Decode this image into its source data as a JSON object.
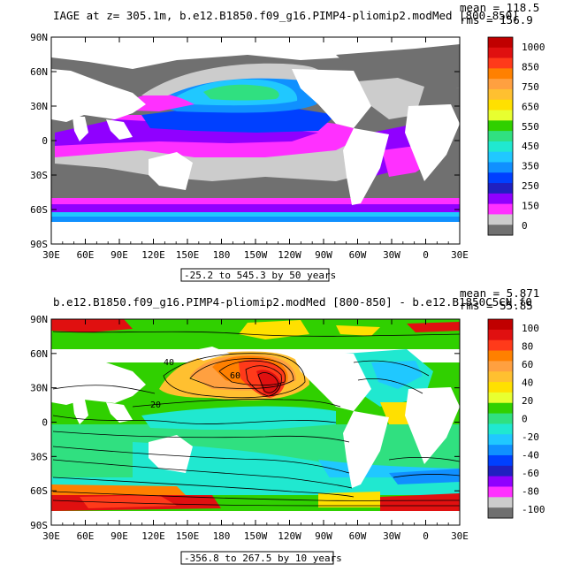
{
  "panels": [
    {
      "title": "IAGE at z= 305.1m, b.e12.B1850.f09_g16.PIMP4-pliomip2.modMed [800-850]",
      "mean_text": "mean = 118.5",
      "rms_text": "rms = 156.9",
      "range_text": "-25.2 to 545.3 by 50 years",
      "colorbar": {
        "labels": [
          "1000",
          "850",
          "750",
          "650",
          "550",
          "450",
          "350",
          "250",
          "150",
          "0"
        ],
        "colors": [
          "#c00000",
          "#e01010",
          "#ff3a1a",
          "#ff8000",
          "#ffa040",
          "#ffc030",
          "#ffe000",
          "#e8ff30",
          "#30d000",
          "#30e080",
          "#20e8d0",
          "#20c8ff",
          "#1090ff",
          "#0040ff",
          "#2020c0",
          "#9000ff",
          "#ff30ff",
          "#cccccc",
          "#707070"
        ]
      }
    },
    {
      "title": "b.e12.B1850.f09_g16.PIMP4-pliomip2.modMed [800-850] - b.e12.B1850C5CN.f0",
      "mean_text": "mean = 5.871",
      "rms_text": "rms = 55.85",
      "range_text": "-356.8 to 267.5 by 10 years",
      "contour_labels": [
        "40",
        "60",
        "20"
      ],
      "colorbar": {
        "labels": [
          "100",
          "80",
          "60",
          "40",
          "20",
          "0",
          "-20",
          "-40",
          "-60",
          "-80",
          "-100"
        ],
        "colors": [
          "#c00000",
          "#e01010",
          "#ff3a1a",
          "#ff8000",
          "#ffa040",
          "#ffc030",
          "#ffe000",
          "#e8ff30",
          "#30d000",
          "#30e080",
          "#20e8d0",
          "#20c8ff",
          "#1090ff",
          "#0040ff",
          "#2020c0",
          "#9000ff",
          "#ff30ff",
          "#cccccc",
          "#707070"
        ]
      }
    }
  ],
  "chart_data": [
    {
      "type": "heatmap",
      "title": "IAGE at z= 305.1m, b.e12.B1850.f09_g16.PIMP4-pliomip2.modMed [800-850]",
      "x_ticks": [
        "30E",
        "60E",
        "90E",
        "120E",
        "150E",
        "180",
        "150W",
        "120W",
        "90W",
        "60W",
        "30W",
        "0",
        "30E"
      ],
      "y_ticks": [
        "90N",
        "60N",
        "30N",
        "0",
        "30S",
        "60S",
        "90S"
      ],
      "colorbar_ticks": [
        1000,
        850,
        750,
        650,
        550,
        450,
        350,
        250,
        150,
        0
      ],
      "mean": 118.5,
      "rms": 156.9,
      "min": -25.2,
      "max": 545.3,
      "interval": 50
    },
    {
      "type": "heatmap",
      "title": "b.e12.B1850.f09_g16.PIMP4-pliomip2.modMed [800-850] - b.e12.B1850C5CN.f0",
      "x_ticks": [
        "30E",
        "60E",
        "90E",
        "120E",
        "150E",
        "180",
        "150W",
        "120W",
        "90W",
        "60W",
        "30W",
        "0",
        "30E"
      ],
      "y_ticks": [
        "90N",
        "60N",
        "30N",
        "0",
        "30S",
        "60S",
        "90S"
      ],
      "colorbar_ticks": [
        100,
        80,
        60,
        40,
        20,
        0,
        -20,
        -40,
        -60,
        -80,
        -100
      ],
      "mean": 5.871,
      "rms": 55.85,
      "min": -356.8,
      "max": 267.5,
      "interval": 10
    }
  ]
}
